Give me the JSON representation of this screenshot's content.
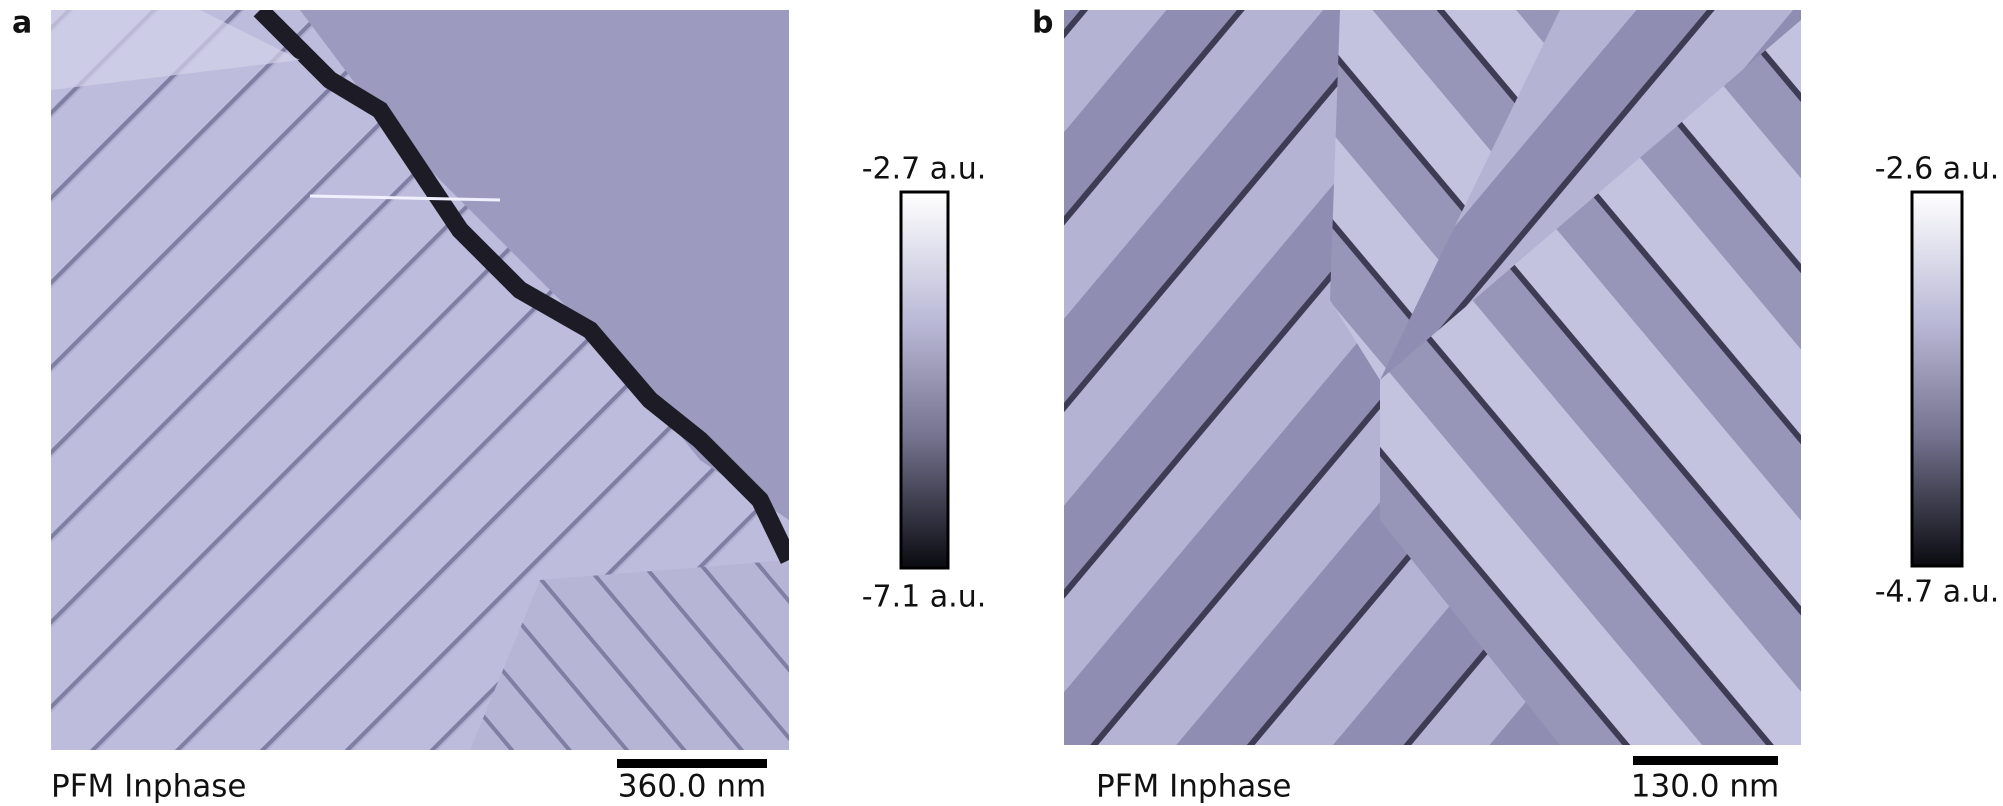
{
  "panels": [
    {
      "label": "a",
      "caption": "PFM Inphase",
      "scale_bar": "360.0 nm",
      "colorbar": {
        "max": "-2.7 a.u.",
        "min": "-7.1 a.u."
      }
    },
    {
      "label": "b",
      "caption": "PFM Inphase",
      "scale_bar": "130.0 nm",
      "colorbar": {
        "max": "-2.6 a.u.",
        "min": "-4.7 a.u."
      }
    }
  ]
}
